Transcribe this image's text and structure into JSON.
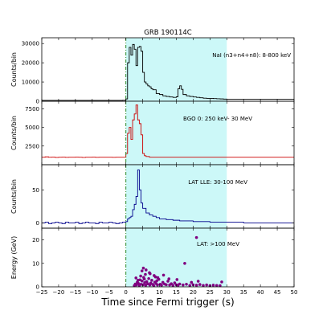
{
  "chart_data": {
    "type": "line",
    "title": "GRB 190114C",
    "xlabel": "Time since Fermi trigger (s)",
    "xlim": [
      -25,
      50
    ],
    "x_ticks": [
      -25,
      -20,
      -15,
      -10,
      -5,
      0,
      5,
      10,
      15,
      20,
      25,
      30,
      35,
      40,
      45,
      50
    ],
    "shaded_region": [
      0,
      30
    ],
    "shaded_color": "#ccf8f8",
    "trigger_line_x": 0,
    "trigger_line_color": "#2e8b2e",
    "panels": [
      {
        "name": "NaI",
        "ylabel": "Counts/bin",
        "annotation": "NaI (n3+n4+n8): 8-800 keV",
        "ylim": [
          0,
          33000
        ],
        "y_ticks": [
          0,
          10000,
          20000,
          30000
        ],
        "color": "#000000",
        "series": {
          "x": [
            -25,
            -24,
            -23,
            -22,
            -21,
            -20,
            -19,
            -18,
            -17,
            -16,
            -15,
            -14,
            -13,
            -12,
            -11,
            -10,
            -9,
            -8,
            -7,
            -6,
            -5,
            -4,
            -3,
            -2,
            -1,
            0,
            0.5,
            1,
            1.5,
            2,
            2.5,
            3,
            3.5,
            4,
            4.5,
            5,
            5.5,
            6,
            6.5,
            7,
            7.5,
            8,
            9,
            10,
            11,
            12,
            13,
            14,
            15,
            15.5,
            16,
            16.5,
            17,
            18,
            19,
            20,
            21,
            22,
            23,
            24,
            25,
            26,
            27,
            28,
            29,
            30
          ],
          "values": [
            450,
            450,
            450,
            450,
            450,
            450,
            450,
            450,
            450,
            450,
            450,
            450,
            450,
            450,
            450,
            450,
            450,
            450,
            450,
            450,
            450,
            450,
            450,
            450,
            500,
            1200,
            20000,
            28000,
            24000,
            29500,
            27000,
            18500,
            28000,
            28500,
            26000,
            15000,
            10000,
            9000,
            8000,
            7500,
            6500,
            6000,
            4000,
            3500,
            2800,
            2500,
            2200,
            2000,
            2300,
            6500,
            8000,
            6200,
            3500,
            2800,
            2500,
            2200,
            2000,
            1800,
            1600,
            1500,
            1500,
            1400,
            1300,
            1200,
            1100,
            1000
          ]
        }
      },
      {
        "name": "BGO",
        "ylabel": "Counts/bin",
        "annotation": "BGO 0: 250 keV- 30 MeV",
        "ylim": [
          0,
          8500
        ],
        "y_ticks": [
          2500,
          5000,
          7500
        ],
        "color": "#cc0000",
        "series": {
          "x": [
            -25,
            -24,
            -23,
            -22,
            -21,
            -20,
            -19,
            -18,
            -17,
            -16,
            -15,
            -14,
            -13,
            -12,
            -11,
            -10,
            -9,
            -8,
            -7,
            -6,
            -5,
            -4,
            -3,
            -2,
            -1,
            0,
            0.5,
            1,
            1.5,
            2,
            2.5,
            3,
            3.5,
            4,
            4.5,
            5,
            5.5,
            6,
            7,
            8,
            10,
            15,
            20,
            25,
            30,
            35,
            40,
            45,
            50
          ],
          "values": [
            1000,
            1050,
            1000,
            1020,
            980,
            1000,
            1010,
            990,
            1000,
            1000,
            1020,
            1000,
            980,
            1000,
            1000,
            1010,
            990,
            1000,
            1000,
            1000,
            1000,
            990,
            1000,
            1000,
            1000,
            1500,
            4200,
            5000,
            3400,
            6000,
            6800,
            8000,
            6000,
            5500,
            4000,
            1500,
            1200,
            1100,
            1000,
            1000,
            1000,
            1000,
            1000,
            1000,
            1000,
            1000,
            1000,
            1000,
            1000
          ]
        }
      },
      {
        "name": "LLE",
        "ylabel": "Counts/bin",
        "annotation": "LAT LLE: 30-100 MeV",
        "ylim": [
          -8,
          88
        ],
        "y_ticks": [
          0,
          50
        ],
        "color": "#00008b",
        "series": {
          "x": [
            -25,
            -24,
            -23,
            -22,
            -21,
            -20,
            -19,
            -18,
            -17,
            -16,
            -15,
            -14,
            -13,
            -12,
            -11,
            -10,
            -9,
            -8,
            -7,
            -6,
            -5,
            -4,
            -3,
            -2,
            -1,
            0,
            0.5,
            1,
            1.5,
            2,
            2.5,
            3,
            3.5,
            4,
            4.5,
            5,
            6,
            7,
            8,
            9,
            10,
            12,
            14,
            16,
            18,
            20,
            25,
            30,
            35,
            40,
            45,
            50
          ],
          "values": [
            0,
            1,
            -1,
            0,
            1,
            0,
            -1,
            1,
            0,
            0,
            1,
            -1,
            0,
            1,
            0,
            0,
            -1,
            1,
            0,
            0,
            1,
            0,
            -1,
            0,
            1,
            2,
            6,
            8,
            10,
            20,
            28,
            40,
            80,
            50,
            30,
            22,
            15,
            12,
            10,
            8,
            6,
            5,
            4,
            3,
            3,
            2,
            1,
            1,
            0,
            0,
            0,
            0
          ]
        }
      },
      {
        "name": "LAT",
        "ylabel": "Energy (GeV)",
        "annotation": "LAT: >100 MeV",
        "ylim": [
          0,
          25
        ],
        "y_ticks": [
          0,
          10,
          20
        ],
        "color": "#800080",
        "type": "scatter",
        "series": {
          "x": [
            2.5,
            2.8,
            3.1,
            3.4,
            3.7,
            4.0,
            4.2,
            4.5,
            4.8,
            5.1,
            5.3,
            5.6,
            5.9,
            6.2,
            6.5,
            6.8,
            7.1,
            7.4,
            7.7,
            8.0,
            8.3,
            8.6,
            9.0,
            9.4,
            9.8,
            10.2,
            10.6,
            11.0,
            11.5,
            12.0,
            12.5,
            13.0,
            13.5,
            14.0,
            14.5,
            15.0,
            15.5,
            16.0,
            17.0,
            18.0,
            19.0,
            20.0,
            21.0,
            22.0,
            23.0,
            24.0,
            25.0,
            26.0,
            27.0,
            28.0,
            3.0,
            4.4,
            5.8,
            7.0,
            8.4,
            9.5,
            11.2,
            12.8,
            4.8,
            6.0,
            7.2,
            5.2,
            8.8,
            15.2,
            17.5,
            21.0,
            28.5,
            3.6,
            5.5,
            9.2,
            19.5,
            21.5
          ],
          "values": [
            0.5,
            1.2,
            0.8,
            2.0,
            1.5,
            0.6,
            3.0,
            1.1,
            2.5,
            0.9,
            4.0,
            1.8,
            0.7,
            2.2,
            1.3,
            3.5,
            0.8,
            1.6,
            2.8,
            1.0,
            0.6,
            2.0,
            1.4,
            0.8,
            3.2,
            1.1,
            0.7,
            1.9,
            1.2,
            0.9,
            2.4,
            0.8,
            1.3,
            0.6,
            1.7,
            0.9,
            0.7,
            1.2,
            0.8,
            1.1,
            0.6,
            0.9,
            0.7,
            1.0,
            0.6,
            0.8,
            0.5,
            0.7,
            0.6,
            0.5,
            3.8,
            4.6,
            5.3,
            6.0,
            4.8,
            3.9,
            5.0,
            3.4,
            6.8,
            7.2,
            5.6,
            8.0,
            4.2,
            3.1,
            10.0,
            21.0,
            2.1,
            2.8,
            3.3,
            2.6,
            1.9,
            2.4
          ]
        }
      }
    ]
  }
}
